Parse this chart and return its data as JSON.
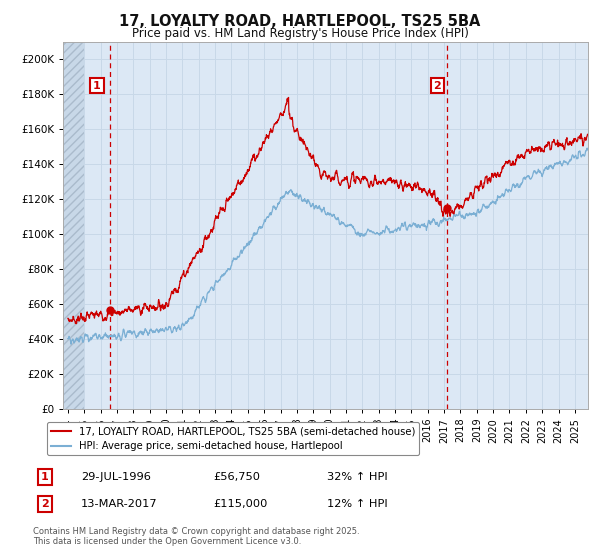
{
  "title_line1": "17, LOYALTY ROAD, HARTLEPOOL, TS25 5BA",
  "title_line2": "Price paid vs. HM Land Registry's House Price Index (HPI)",
  "background_color": "#ffffff",
  "plot_bg_color": "#dce8f5",
  "grid_color": "#c8d8e8",
  "ylim": [
    0,
    210000
  ],
  "yticks": [
    0,
    20000,
    40000,
    60000,
    80000,
    100000,
    120000,
    140000,
    160000,
    180000,
    200000
  ],
  "ytick_labels": [
    "£0",
    "£20K",
    "£40K",
    "£60K",
    "£80K",
    "£100K",
    "£120K",
    "£140K",
    "£160K",
    "£180K",
    "£200K"
  ],
  "xlim_start": 1993.7,
  "xlim_end": 2025.8,
  "xtick_years": [
    1994,
    1995,
    1996,
    1997,
    1998,
    1999,
    2000,
    2001,
    2002,
    2003,
    2004,
    2005,
    2006,
    2007,
    2008,
    2009,
    2010,
    2011,
    2012,
    2013,
    2014,
    2015,
    2016,
    2017,
    2018,
    2019,
    2020,
    2021,
    2022,
    2023,
    2024,
    2025
  ],
  "sale1_x": 1996.57,
  "sale1_y": 56750,
  "sale1_label": "1",
  "sale2_x": 2017.19,
  "sale2_y": 115000,
  "sale2_label": "2",
  "red_color": "#cc0000",
  "blue_color": "#7bafd4",
  "legend_line1": "17, LOYALTY ROAD, HARTLEPOOL, TS25 5BA (semi-detached house)",
  "legend_line2": "HPI: Average price, semi-detached house, Hartlepool",
  "annotation1_date": "29-JUL-1996",
  "annotation1_price": "£56,750",
  "annotation1_hpi": "32% ↑ HPI",
  "annotation2_date": "13-MAR-2017",
  "annotation2_price": "£115,000",
  "annotation2_hpi": "12% ↑ HPI",
  "footnote": "Contains HM Land Registry data © Crown copyright and database right 2025.\nThis data is licensed under the Open Government Licence v3.0."
}
